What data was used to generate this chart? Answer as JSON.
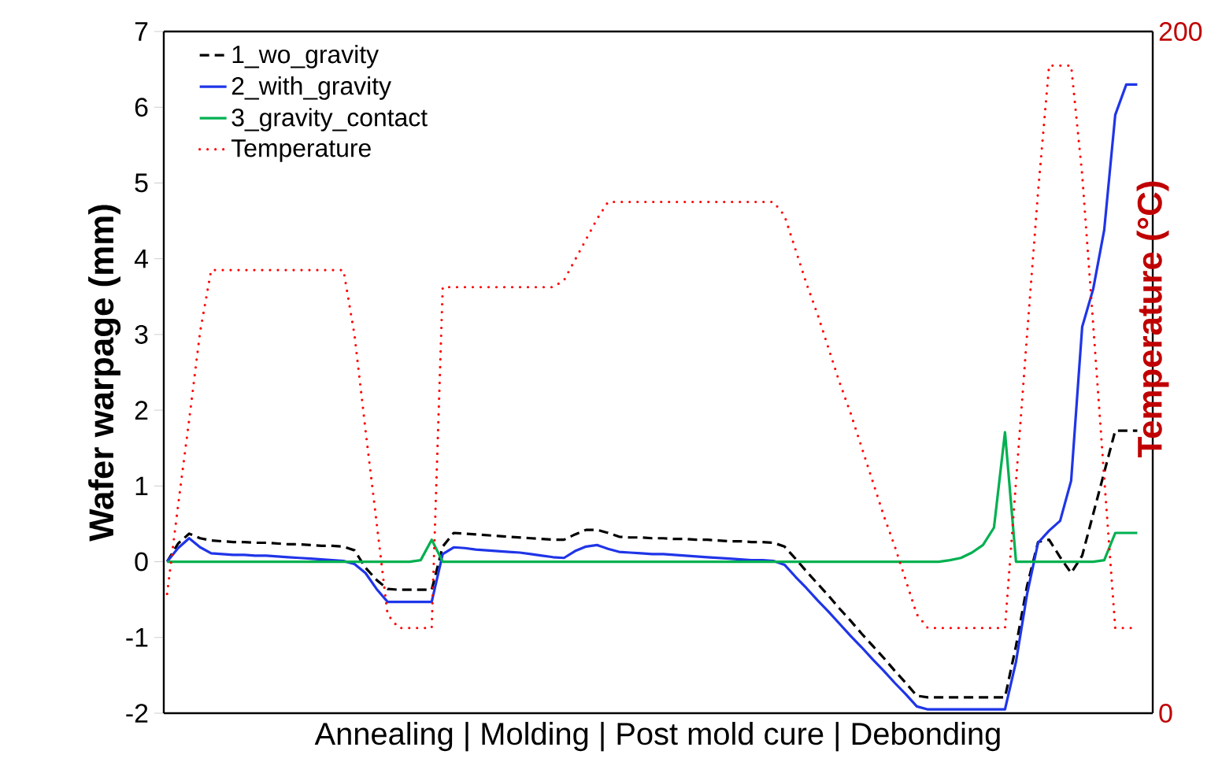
{
  "chart_data": {
    "type": "line",
    "xlabel": "Annealing | Molding | Post mold cure | Debonding",
    "ylabel": "Wafer warpage (mm)",
    "y2label": "Temperature (°C)",
    "categories": [
      null,
      null,
      null,
      null,
      null,
      null,
      null,
      null,
      null,
      null,
      null,
      null,
      null,
      null,
      null,
      null,
      null,
      null,
      null,
      null,
      null,
      null,
      null,
      null,
      null,
      null,
      null,
      null,
      null,
      null,
      null,
      null,
      null,
      null,
      null,
      null,
      null,
      null,
      null,
      null,
      null,
      null,
      null,
      null,
      null,
      null,
      null,
      null,
      null,
      null,
      null,
      null,
      null,
      null,
      null,
      null,
      null,
      null,
      null,
      null,
      null,
      null,
      null,
      null,
      null,
      null,
      null,
      null,
      null,
      null,
      null,
      null,
      null,
      null,
      null,
      null,
      null,
      null,
      null,
      null,
      null,
      null,
      null,
      null,
      null,
      null,
      null,
      null,
      null
    ],
    "ylim": [
      -2,
      7
    ],
    "yticks": [
      -2,
      -1,
      0,
      1,
      2,
      3,
      4,
      5,
      6,
      7
    ],
    "y2lim": [
      0,
      200
    ],
    "y2ticks": [
      0,
      200
    ],
    "legend": "top left",
    "series": [
      {
        "name": "1_wo_gravity",
        "color": "#000000",
        "line_style": "dashed",
        "values": [
          0,
          0.24,
          0.37,
          0.31,
          0.28,
          0.27,
          0.26,
          0.26,
          0.25,
          0.25,
          0.24,
          0.23,
          0.23,
          0.22,
          0.21,
          0.21,
          0.2,
          0.15,
          -0.08,
          -0.24,
          -0.36,
          -0.37,
          -0.37,
          -0.37,
          -0.37,
          0.2,
          0.38,
          0.37,
          0.36,
          0.35,
          0.34,
          0.33,
          0.32,
          0.31,
          0.3,
          0.29,
          0.29,
          0.36,
          0.42,
          0.42,
          0.38,
          0.33,
          0.32,
          0.32,
          0.31,
          0.31,
          0.3,
          0.3,
          0.29,
          0.29,
          0.28,
          0.27,
          0.27,
          0.26,
          0.26,
          0.25,
          0.2,
          0.04,
          -0.13,
          -0.29,
          -0.45,
          -0.62,
          -0.78,
          -0.95,
          -1.11,
          -1.27,
          -1.44,
          -1.6,
          -1.77,
          -1.79,
          -1.79,
          -1.79,
          -1.79,
          -1.79,
          -1.79,
          -1.79,
          -1.79,
          -1.11,
          -0.32,
          0.26,
          0.29,
          0.06,
          -0.15,
          0.08,
          0.63,
          1.18,
          1.73,
          1.73,
          1.73
        ]
      },
      {
        "name": "2_with_gravity",
        "color": "#1f35e8",
        "line_style": "solid",
        "values": [
          0,
          0.18,
          0.31,
          0.19,
          0.11,
          0.1,
          0.09,
          0.09,
          0.08,
          0.08,
          0.07,
          0.06,
          0.05,
          0.04,
          0.03,
          0.02,
          0.01,
          -0.03,
          -0.15,
          -0.36,
          -0.53,
          -0.53,
          -0.53,
          -0.53,
          -0.53,
          0.1,
          0.19,
          0.18,
          0.16,
          0.15,
          0.14,
          0.13,
          0.12,
          0.1,
          0.08,
          0.06,
          0.05,
          0.14,
          0.2,
          0.22,
          0.17,
          0.13,
          0.12,
          0.11,
          0.1,
          0.1,
          0.09,
          0.08,
          0.07,
          0.06,
          0.05,
          0.04,
          0.03,
          0.02,
          0.02,
          0.01,
          -0.04,
          -0.2,
          -0.35,
          -0.51,
          -0.66,
          -0.82,
          -0.98,
          -1.13,
          -1.29,
          -1.44,
          -1.6,
          -1.75,
          -1.91,
          -1.95,
          -1.95,
          -1.95,
          -1.95,
          -1.95,
          -1.95,
          -1.95,
          -1.95,
          -1.32,
          -0.43,
          0.25,
          0.41,
          0.54,
          1.07,
          3.1,
          3.6,
          4.38,
          5.9,
          6.3,
          6.3
        ]
      },
      {
        "name": "3_gravity_contact",
        "color": "#00b050",
        "line_style": "solid",
        "values": [
          0,
          0,
          0,
          0,
          0,
          0,
          0,
          0,
          0,
          0,
          0,
          0,
          0,
          0,
          0,
          0,
          0,
          0,
          0,
          0,
          0,
          0,
          0,
          0.02,
          0.29,
          0,
          0,
          0,
          0,
          0,
          0,
          0,
          0,
          0,
          0,
          0,
          0,
          0,
          0,
          0,
          0,
          0,
          0,
          0,
          0,
          0,
          0,
          0,
          0,
          0,
          0,
          0,
          0,
          0,
          0,
          0,
          0,
          0,
          0,
          0,
          0,
          0,
          0,
          0,
          0,
          0,
          0,
          0,
          0,
          0,
          0,
          0.02,
          0.05,
          0.12,
          0.22,
          0.45,
          1.71,
          0,
          0,
          0,
          0,
          0,
          0,
          0,
          0,
          0.02,
          0.38,
          0.38,
          0.38
        ]
      },
      {
        "name": "Temperature",
        "color": "#ff0000",
        "line_style": "dotted",
        "axis": "y2",
        "values": [
          35,
          61,
          86,
          112,
          130,
          130,
          130,
          130,
          130,
          130,
          130,
          130,
          130,
          130,
          130,
          130,
          130,
          111,
          83,
          56,
          29,
          25,
          25,
          25,
          25,
          125,
          125,
          125,
          125,
          125,
          125,
          125,
          125,
          125,
          125,
          125,
          127,
          133,
          139,
          145,
          150,
          150,
          150,
          150,
          150,
          150,
          150,
          150,
          150,
          150,
          150,
          150,
          150,
          150,
          150,
          150,
          146,
          136,
          126,
          117,
          107,
          97,
          88,
          78,
          68,
          58,
          49,
          39,
          29,
          25,
          25,
          25,
          25,
          25,
          25,
          25,
          25,
          68,
          111,
          153,
          190,
          190,
          190,
          158,
          114,
          69,
          25,
          25,
          25
        ]
      }
    ]
  }
}
